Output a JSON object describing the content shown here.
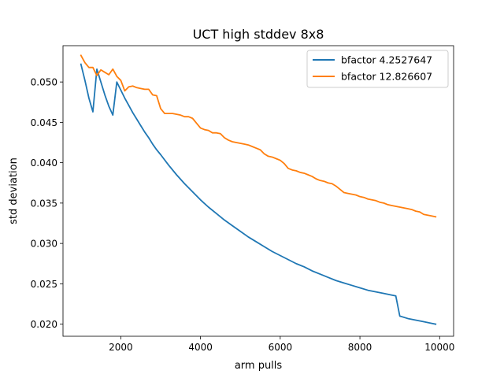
{
  "chart_data": {
    "type": "line",
    "title": "UCT high stddev 8x8",
    "xlabel": "arm pulls",
    "ylabel": "std deviation",
    "xlim": [
      550,
      10350
    ],
    "ylim": [
      0.0185,
      0.0545
    ],
    "xticks": [
      2000,
      4000,
      6000,
      8000,
      10000
    ],
    "xtick_labels": [
      "2000",
      "4000",
      "6000",
      "8000",
      "10000"
    ],
    "yticks": [
      0.02,
      0.025,
      0.03,
      0.035,
      0.04,
      0.045,
      0.05
    ],
    "ytick_labels": [
      "0.020",
      "0.025",
      "0.030",
      "0.035",
      "0.040",
      "0.045",
      "0.050"
    ],
    "grid": false,
    "legend_position": "upper right",
    "series": [
      {
        "name": "bfactor 4.2527647",
        "color": "#1f77b4",
        "x": [
          1000,
          1100,
          1200,
          1300,
          1400,
          1500,
          1600,
          1700,
          1800,
          1900,
          2000,
          2100,
          2200,
          2300,
          2400,
          2500,
          2600,
          2700,
          2800,
          2900,
          3000,
          3200,
          3400,
          3600,
          3800,
          4000,
          4200,
          4400,
          4600,
          4800,
          5000,
          5200,
          5400,
          5600,
          5800,
          6000,
          6200,
          6400,
          6600,
          6800,
          7000,
          7200,
          7400,
          7600,
          7800,
          8000,
          8200,
          8400,
          8600,
          8800,
          8900,
          9000,
          9200,
          9400,
          9600,
          9800,
          9900
        ],
        "y": [
          0.0522,
          0.0502,
          0.048,
          0.0463,
          0.0516,
          0.05,
          0.0484,
          0.047,
          0.0459,
          0.05,
          0.049,
          0.048,
          0.0471,
          0.0462,
          0.0454,
          0.0446,
          0.0438,
          0.0431,
          0.0423,
          0.0416,
          0.041,
          0.0397,
          0.0385,
          0.0374,
          0.0364,
          0.0354,
          0.0345,
          0.0337,
          0.0329,
          0.0322,
          0.0315,
          0.0308,
          0.0302,
          0.0296,
          0.029,
          0.0285,
          0.028,
          0.0275,
          0.0271,
          0.0266,
          0.0262,
          0.0258,
          0.0254,
          0.0251,
          0.0248,
          0.0245,
          0.0242,
          0.024,
          0.0238,
          0.0236,
          0.0235,
          0.021,
          0.0207,
          0.0205,
          0.0203,
          0.0201,
          0.02
        ]
      },
      {
        "name": "bfactor 12.826607",
        "color": "#ff7f0e",
        "x": [
          1000,
          1100,
          1200,
          1300,
          1400,
          1500,
          1600,
          1700,
          1800,
          1900,
          2000,
          2100,
          2200,
          2300,
          2400,
          2500,
          2600,
          2700,
          2800,
          2900,
          3000,
          3100,
          3200,
          3300,
          3400,
          3500,
          3600,
          3700,
          3800,
          3900,
          4000,
          4100,
          4200,
          4300,
          4400,
          4500,
          4600,
          4700,
          4800,
          4900,
          5000,
          5100,
          5200,
          5300,
          5400,
          5500,
          5600,
          5700,
          5800,
          5900,
          6000,
          6100,
          6200,
          6300,
          6400,
          6500,
          6600,
          6700,
          6800,
          6900,
          7000,
          7100,
          7200,
          7300,
          7400,
          7500,
          7600,
          7700,
          7800,
          7900,
          8000,
          8100,
          8200,
          8300,
          8400,
          8500,
          8600,
          8700,
          8800,
          8900,
          9000,
          9100,
          9200,
          9300,
          9400,
          9500,
          9600,
          9700,
          9800,
          9900
        ],
        "y": [
          0.0533,
          0.0524,
          0.0518,
          0.0518,
          0.0508,
          0.0515,
          0.0512,
          0.0509,
          0.0516,
          0.0507,
          0.0502,
          0.0489,
          0.0494,
          0.0495,
          0.0493,
          0.0492,
          0.0491,
          0.0491,
          0.0484,
          0.0483,
          0.0467,
          0.0461,
          0.0461,
          0.0461,
          0.046,
          0.0459,
          0.0457,
          0.0457,
          0.0455,
          0.0449,
          0.0443,
          0.0441,
          0.044,
          0.0437,
          0.0437,
          0.0436,
          0.0431,
          0.0428,
          0.0426,
          0.0425,
          0.0424,
          0.0423,
          0.0422,
          0.042,
          0.0418,
          0.0416,
          0.0411,
          0.0408,
          0.0407,
          0.0405,
          0.0403,
          0.0399,
          0.0393,
          0.0391,
          0.039,
          0.0388,
          0.0387,
          0.0385,
          0.0383,
          0.038,
          0.0378,
          0.0377,
          0.0375,
          0.0374,
          0.0371,
          0.0367,
          0.0363,
          0.0362,
          0.0361,
          0.036,
          0.0358,
          0.0357,
          0.0355,
          0.0354,
          0.0353,
          0.0351,
          0.035,
          0.0348,
          0.0347,
          0.0346,
          0.0345,
          0.0344,
          0.0343,
          0.0342,
          0.034,
          0.0339,
          0.0336,
          0.0335,
          0.0334,
          0.0333
        ]
      }
    ]
  }
}
